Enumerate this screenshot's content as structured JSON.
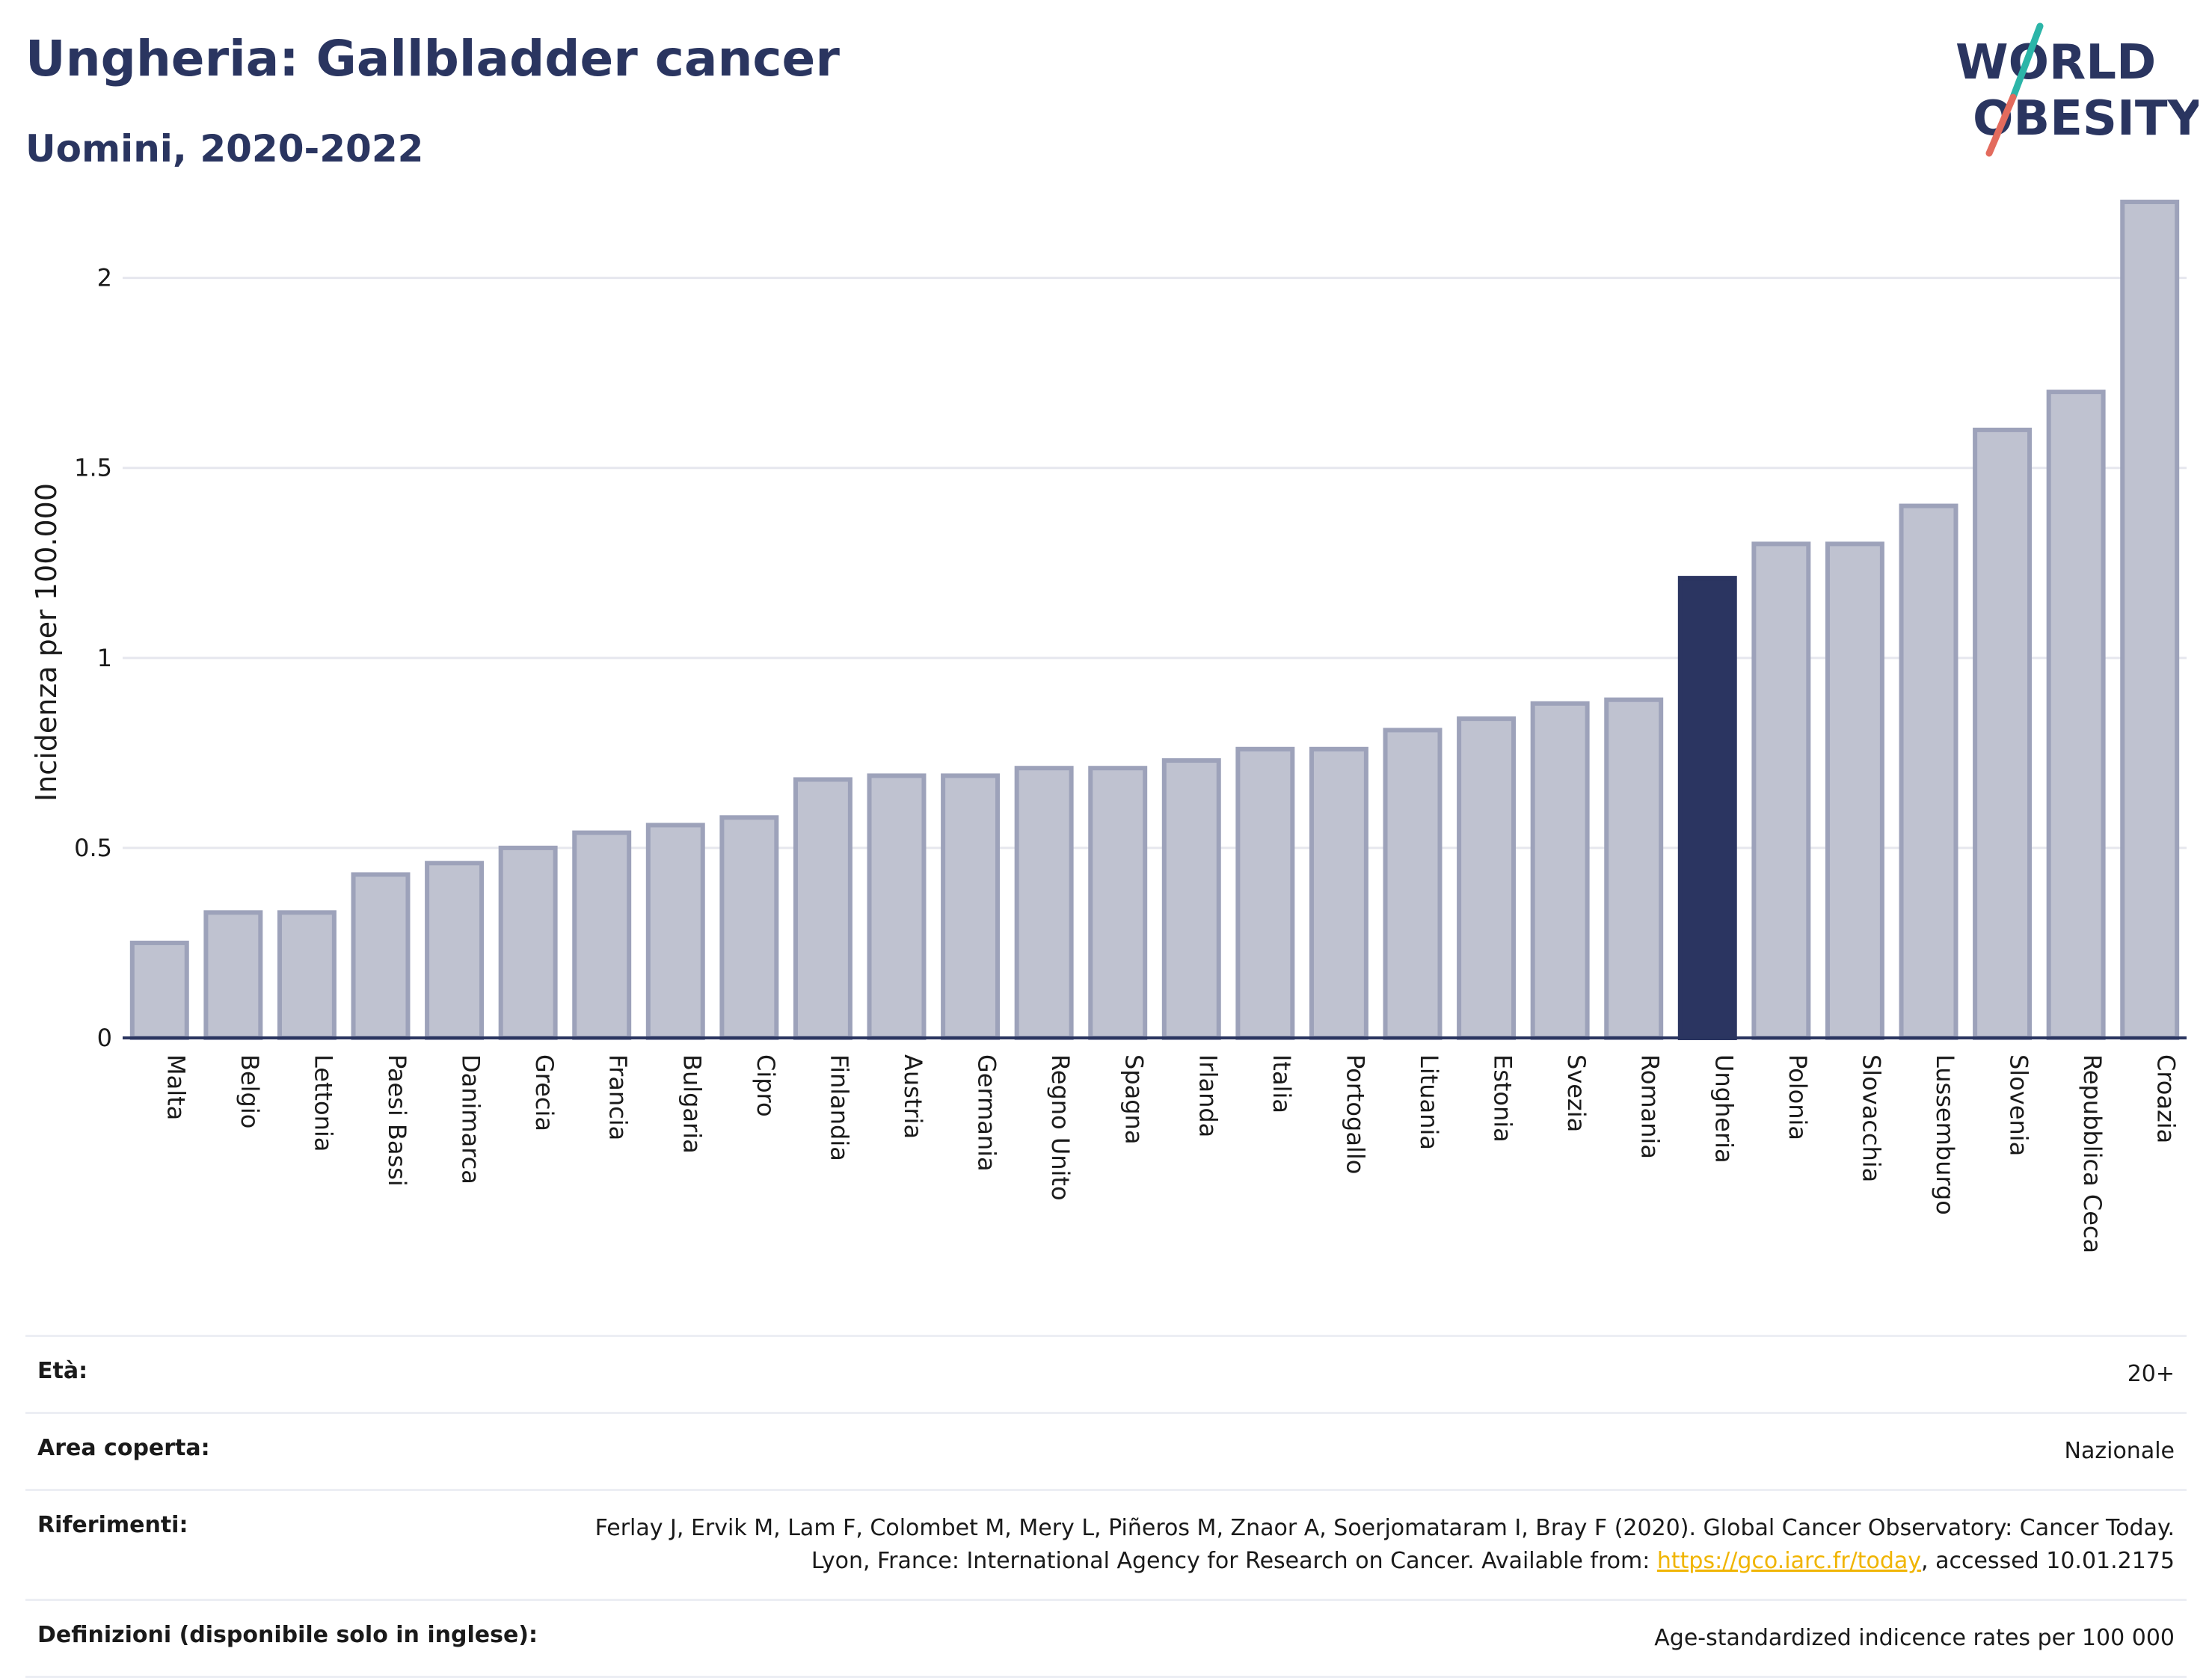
{
  "header": {
    "title": "Ungheria: Gallbladder cancer",
    "subtitle": "Uomini, 2020-2022"
  },
  "logo": {
    "line1": "WORLD",
    "line2": "OBESITY"
  },
  "colors": {
    "bar": "#bfc2d0",
    "bar_border": "#9da2ba",
    "highlight": "#2b3561",
    "text": "#2a3560",
    "link": "#f0b400"
  },
  "chart_data": {
    "type": "bar",
    "ylabel": "Incidenza per 100.000",
    "xlabel": "",
    "ylim": [
      0,
      2.2
    ],
    "yticks": [
      0,
      0.5,
      1,
      1.5,
      2
    ],
    "ytick_labels": [
      "0",
      "0.5",
      "1",
      "1.5",
      "2"
    ],
    "grid": true,
    "highlight": "Ungheria",
    "categories": [
      "Malta",
      "Belgio",
      "Lettonia",
      "Paesi Bassi",
      "Danimarca",
      "Grecia",
      "Francia",
      "Bulgaria",
      "Cipro",
      "Finlandia",
      "Austria",
      "Germania",
      "Regno Unito",
      "Spagna",
      "Irlanda",
      "Italia",
      "Portogallo",
      "Lituania",
      "Estonia",
      "Svezia",
      "Romania",
      "Ungheria",
      "Polonia",
      "Slovacchia",
      "Lussemburgo",
      "Slovenia",
      "Repubblica Ceca",
      "Croazia"
    ],
    "values": [
      0.25,
      0.33,
      0.33,
      0.43,
      0.46,
      0.5,
      0.54,
      0.56,
      0.58,
      0.68,
      0.69,
      0.69,
      0.71,
      0.71,
      0.73,
      0.76,
      0.76,
      0.81,
      0.84,
      0.88,
      0.89,
      1.21,
      1.3,
      1.3,
      1.4,
      1.6,
      1.7,
      2.2
    ]
  },
  "info": {
    "age_label": "Età:",
    "age_value": "20+",
    "area_label": "Area coperta:",
    "area_value": "Nazionale",
    "ref_label": "Riferimenti:",
    "ref_text_1": "Ferlay J, Ervik M, Lam F, Colombet M, Mery L, Piñeros M, Znaor A, Soerjomataram I, Bray F (2020). Global Cancer Observatory: Cancer Today. Lyon, France: International Agency for Research on Cancer. Available from: ",
    "ref_link": "https://gco.iarc.fr/today",
    "ref_text_2": ", accessed 10.01.2175",
    "def_label": "Definizioni (disponibile solo in inglese):",
    "def_value": "Age-standardized indicence rates per 100 000"
  }
}
